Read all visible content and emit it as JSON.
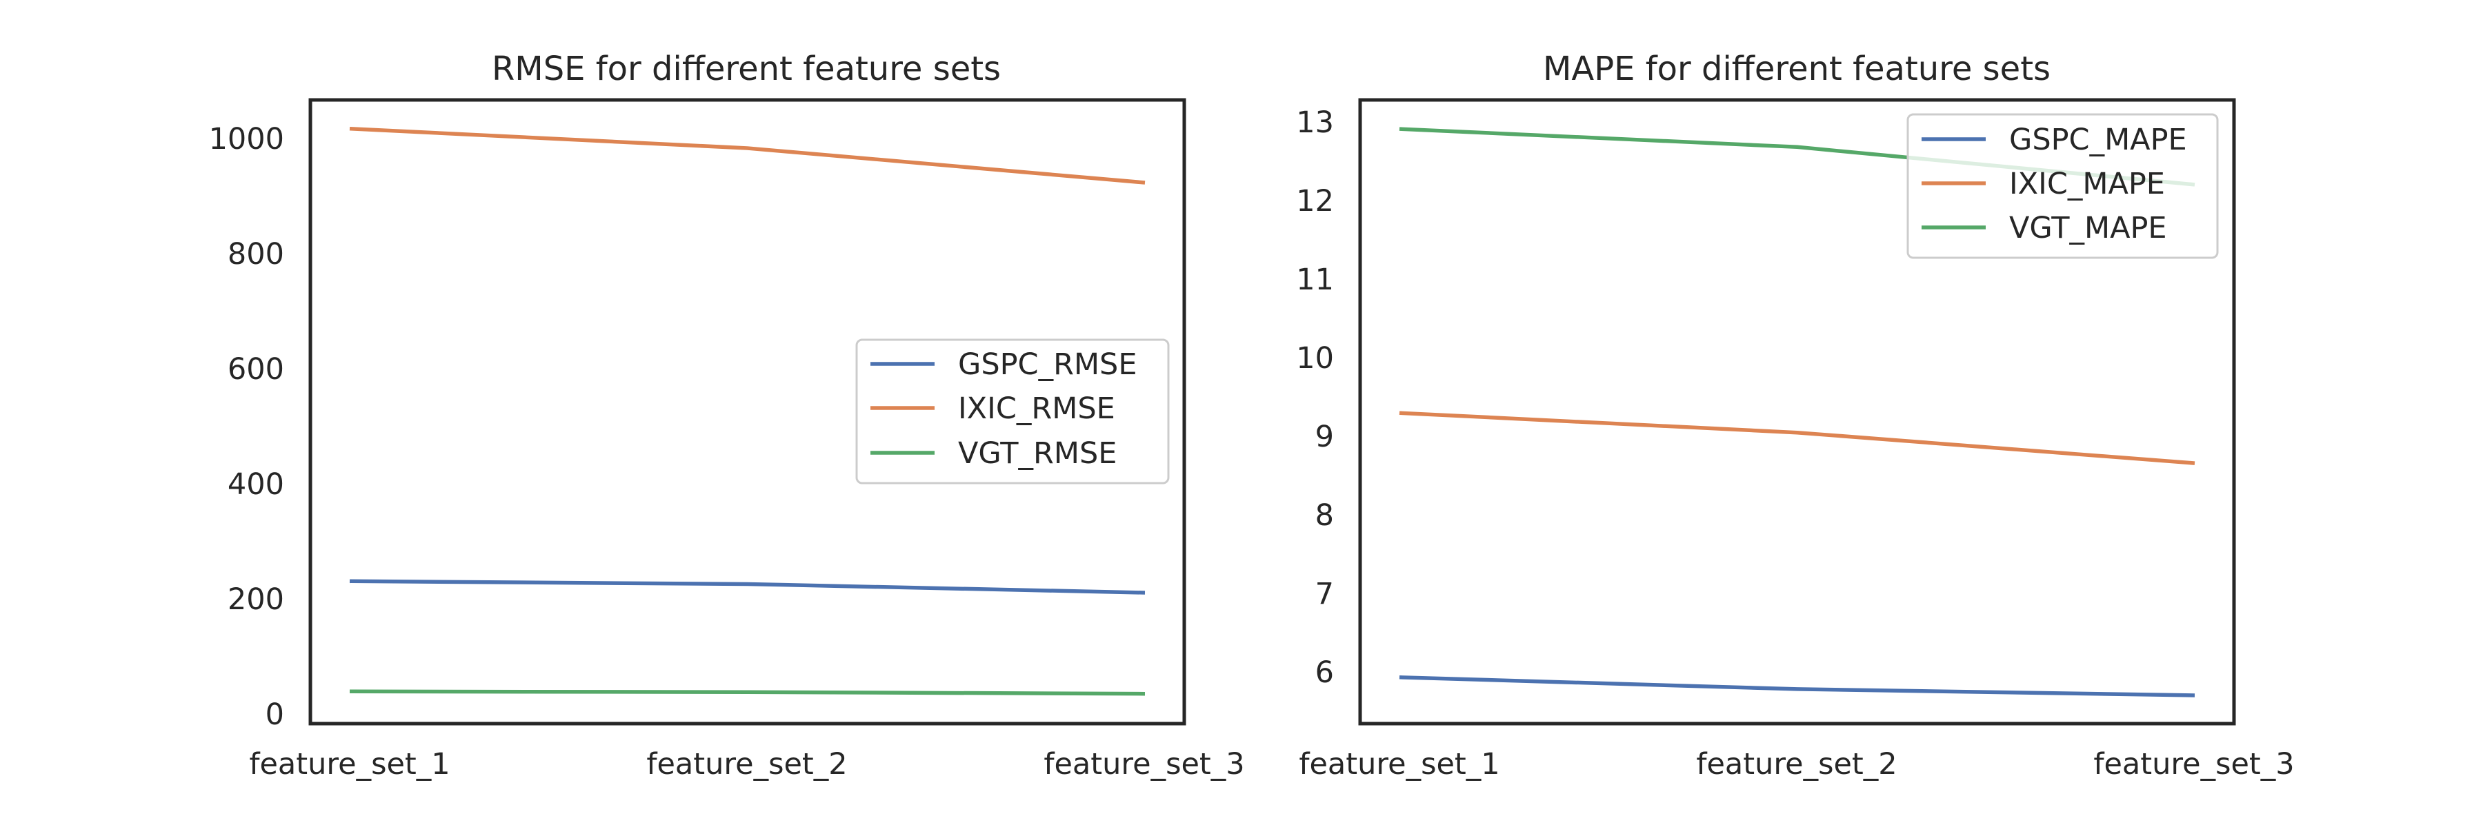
{
  "chart_data": [
    {
      "type": "line",
      "title": "RMSE for different feature sets",
      "xlabel": "",
      "ylabel": "",
      "categories": [
        "feature_set_1",
        "feature_set_2",
        "feature_set_3"
      ],
      "ylim": [
        -18,
        1068
      ],
      "yticks": [
        "0",
        "200",
        "400",
        "600",
        "800",
        "1000"
      ],
      "grid": false,
      "legend_position": "center-right",
      "series": [
        {
          "name": "GSPC_RMSE",
          "values": [
            230,
            225,
            210
          ],
          "color": "#4c72b0"
        },
        {
          "name": "IXIC_RMSE",
          "values": [
            1018,
            984,
            924
          ],
          "color": "#dd8452"
        },
        {
          "name": "VGT_RMSE",
          "values": [
            38,
            37,
            34
          ],
          "color": "#55a868"
        }
      ]
    },
    {
      "type": "line",
      "title": "MAPE for different feature sets",
      "xlabel": "",
      "ylabel": "",
      "categories": [
        "feature_set_1",
        "feature_set_2",
        "feature_set_3"
      ],
      "ylim": [
        5.35,
        13.3
      ],
      "yticks": [
        "6",
        "7",
        "8",
        "9",
        "10",
        "11",
        "12",
        "13"
      ],
      "grid": false,
      "legend_position": "upper-right",
      "series": [
        {
          "name": "GSPC_MAPE",
          "values": [
            5.94,
            5.79,
            5.71
          ],
          "color": "#4c72b0"
        },
        {
          "name": "IXIC_MAPE",
          "values": [
            9.31,
            9.06,
            8.67
          ],
          "color": "#dd8452"
        },
        {
          "name": "VGT_MAPE",
          "values": [
            12.93,
            12.7,
            12.22
          ],
          "color": "#55a868"
        }
      ]
    }
  ]
}
